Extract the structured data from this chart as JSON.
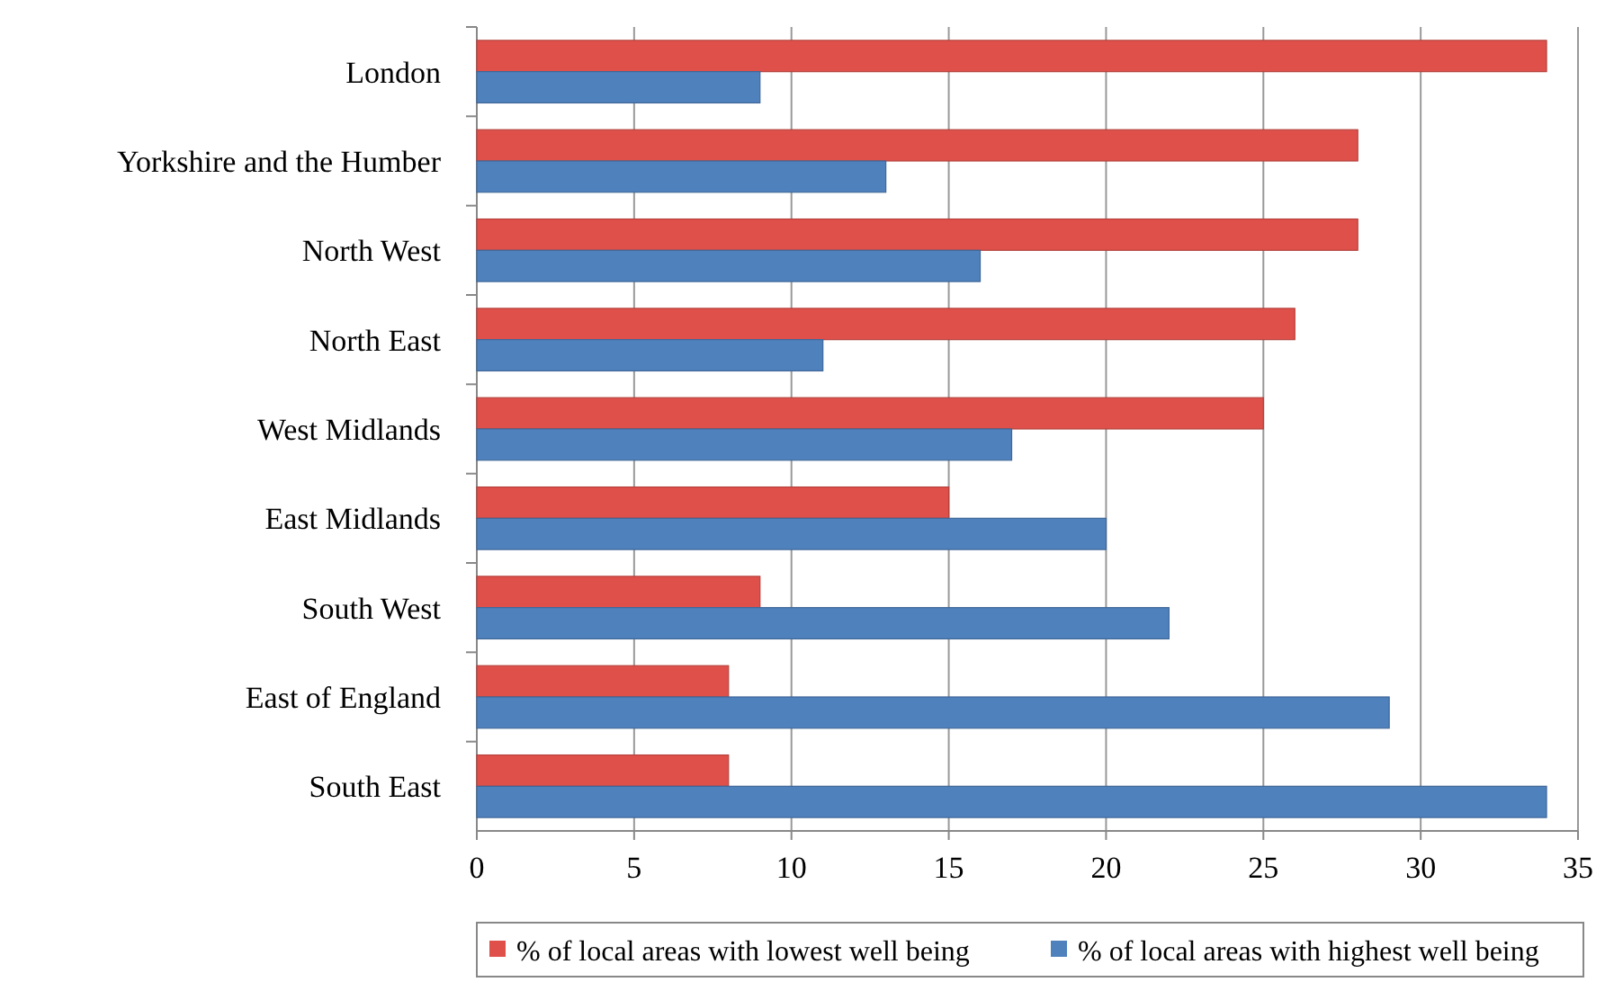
{
  "chart_data": {
    "type": "bar",
    "orientation": "horizontal",
    "categories": [
      "London",
      "Yorkshire and the Humber",
      "North West",
      "North East",
      "West Midlands",
      "East Midlands",
      "South West",
      "East of England",
      "South East"
    ],
    "series": [
      {
        "name": "% of local areas with lowest well being",
        "color": "#e0504a",
        "values": [
          34,
          28,
          28,
          26,
          25,
          15,
          9,
          8,
          8
        ]
      },
      {
        "name": "% of local areas with highest well being",
        "color": "#4f81bd",
        "values": [
          9,
          13,
          16,
          11,
          17,
          20,
          22,
          29,
          34
        ]
      }
    ],
    "xlim": [
      0,
      35
    ],
    "xticks": [
      0,
      5,
      10,
      15,
      20,
      25,
      30,
      35
    ],
    "grid": "x",
    "legend": "bottom"
  }
}
